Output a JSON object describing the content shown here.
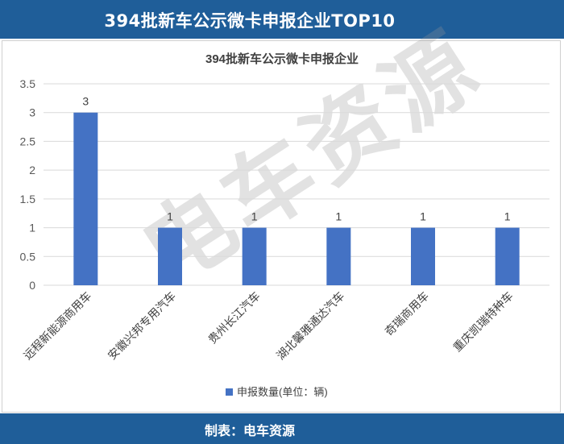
{
  "banner": {
    "title": "394批新车公示微卡申报企业TOP10"
  },
  "footer": {
    "credit": "制表：电车资源"
  },
  "watermark": {
    "text": "电车资源"
  },
  "colors": {
    "banner": "#1f5e99",
    "bar": "#4472c4",
    "grid": "#d9d9d9"
  },
  "chart_data": {
    "type": "bar",
    "title": "394批新车公示微卡申报企业",
    "categories": [
      "远程新能源商用车",
      "安徽兴邦专用汽车",
      "贵州长江汽车",
      "湖北馨雅通达汽车",
      "奇瑞商用车",
      "重庆凯瑞特种车"
    ],
    "series": [
      {
        "name": "申报数量(单位：辆)",
        "values": [
          3,
          1,
          1,
          1,
          1,
          1
        ]
      }
    ],
    "data_labels": [
      "3",
      "1",
      "1",
      "1",
      "1",
      "1"
    ],
    "ylim": [
      0,
      3.5
    ],
    "yticks": [
      "0",
      "0.5",
      "1",
      "1.5",
      "2",
      "2.5",
      "3",
      "3.5"
    ],
    "grid": true,
    "legend_position": "bottom"
  }
}
